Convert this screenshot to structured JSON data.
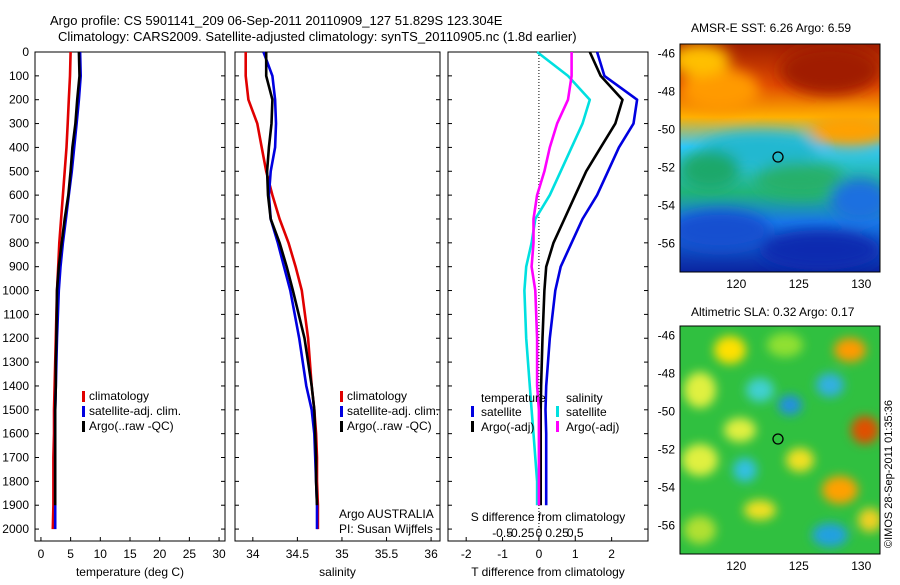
{
  "title_line1": "Argo profile: CS 5901141_209 06-Sep-2011 20110909_127 51.829S 123.304E",
  "title_line2": "Climatology: CARS2009. Satellite-adjusted climatology: synTS_20110905.nc (1.8d earlier)",
  "footer_mark": "©IMOS 28-Sep-2011 01:35:36",
  "colors": {
    "climatology": "#e00000",
    "satellite": "#0000e0",
    "argo": "#000000",
    "sal_sat": "#00e0e0",
    "sal_argo": "#ff00ff"
  },
  "chart_data": [
    {
      "type": "line",
      "xlabel": "temperature (deg C)",
      "ylim": [
        2050,
        0
      ],
      "xlim": [
        -1,
        31
      ],
      "xticks": [
        "0",
        "5",
        "10",
        "15",
        "20",
        "25",
        "30"
      ],
      "yticks": [
        "0",
        "100",
        "200",
        "300",
        "400",
        "500",
        "600",
        "700",
        "800",
        "900",
        "1000",
        "1100",
        "1200",
        "1300",
        "1400",
        "1500",
        "1600",
        "1700",
        "1800",
        "1900",
        "2000"
      ],
      "legend": [
        "climatology",
        "satellite-adj. clim.",
        "Argo(..raw -QC)"
      ],
      "series": [
        {
          "name": "climatology",
          "color": "climatology",
          "x": [
            5.0,
            4.9,
            4.7,
            4.5,
            4.3,
            4.0,
            3.7,
            3.4,
            3.1,
            2.9,
            2.7,
            2.5,
            2.4,
            2.3,
            2.2,
            2.2,
            2.1,
            2.1,
            2.1,
            2.0
          ],
          "y": [
            0,
            100,
            200,
            300,
            400,
            500,
            600,
            700,
            800,
            900,
            1000,
            1200,
            1300,
            1400,
            1500,
            1600,
            1700,
            1800,
            1900,
            2000
          ]
        },
        {
          "name": "satellite-adj. clim.",
          "color": "satellite",
          "x": [
            6.6,
            6.7,
            6.4,
            6.0,
            5.6,
            5.2,
            4.7,
            4.2,
            3.7,
            3.3,
            3.0,
            2.7,
            2.6,
            2.5,
            2.4,
            2.4,
            2.4,
            2.4,
            2.4,
            2.4
          ],
          "y": [
            0,
            100,
            200,
            300,
            400,
            500,
            600,
            700,
            800,
            900,
            1000,
            1200,
            1300,
            1400,
            1500,
            1600,
            1700,
            1800,
            1900,
            2000
          ]
        },
        {
          "name": "Argo(..raw -QC)",
          "color": "argo",
          "x": [
            6.4,
            6.5,
            6.1,
            5.8,
            5.3,
            5.0,
            4.6,
            4.0,
            3.5,
            3.0,
            2.7,
            2.6,
            2.5,
            2.5,
            2.4,
            2.4,
            2.4,
            2.4,
            2.4
          ],
          "y": [
            0,
            100,
            200,
            300,
            400,
            500,
            600,
            700,
            800,
            900,
            1000,
            1200,
            1300,
            1400,
            1500,
            1600,
            1700,
            1800,
            1900
          ]
        }
      ]
    },
    {
      "type": "line",
      "xlabel": "salinity",
      "ylim": [
        2050,
        0
      ],
      "xlim": [
        33.8,
        36.1
      ],
      "xticks": [
        "34",
        "34.5",
        "35",
        "35.5",
        "36"
      ],
      "legend": [
        "climatology",
        "satellite-adj. clim.",
        "Argo(..raw -QC)"
      ],
      "annotation": [
        "Argo AUSTRALIA",
        "PI: Susan Wijffels"
      ],
      "series": [
        {
          "name": "climatology",
          "color": "climatology",
          "x": [
            33.92,
            33.92,
            33.95,
            34.05,
            34.1,
            34.15,
            34.22,
            34.3,
            34.4,
            34.48,
            34.55,
            34.62,
            34.66,
            34.69,
            34.71,
            34.72,
            34.72,
            34.73,
            34.73
          ],
          "y": [
            0,
            100,
            200,
            300,
            400,
            500,
            600,
            700,
            800,
            900,
            1000,
            1200,
            1400,
            1500,
            1600,
            1700,
            1800,
            1900,
            2000
          ]
        },
        {
          "name": "satellite-adj. clim.",
          "color": "satellite",
          "x": [
            34.12,
            34.22,
            34.25,
            34.26,
            34.25,
            34.2,
            34.18,
            34.2,
            34.28,
            34.35,
            34.42,
            34.52,
            34.6,
            34.66,
            34.69,
            34.7,
            34.71,
            34.72,
            34.72
          ],
          "y": [
            0,
            100,
            200,
            300,
            400,
            500,
            600,
            700,
            800,
            900,
            1000,
            1200,
            1400,
            1500,
            1600,
            1700,
            1800,
            1900,
            2000
          ]
        },
        {
          "name": "Argo(..raw -QC)",
          "color": "argo",
          "x": [
            34.15,
            34.15,
            34.22,
            34.21,
            34.18,
            34.16,
            34.17,
            34.2,
            34.3,
            34.38,
            34.45,
            34.58,
            34.66,
            34.69,
            34.7,
            34.71,
            34.71,
            34.72
          ],
          "y": [
            0,
            100,
            200,
            300,
            400,
            500,
            600,
            700,
            800,
            900,
            1000,
            1200,
            1400,
            1500,
            1600,
            1700,
            1800,
            1900
          ]
        }
      ]
    },
    {
      "type": "line",
      "xlabel": "T difference from climatology",
      "top_label": "S difference from climatology",
      "ylim": [
        2050,
        0
      ],
      "xlim": [
        -2.5,
        3.0
      ],
      "xticks": [
        "-2",
        "-1",
        "0",
        "1",
        "2"
      ],
      "sticks": [
        "-0.5",
        "-0.25",
        "0",
        "0.25",
        "0.5"
      ],
      "legend_groups": [
        {
          "title": "temperature",
          "items": [
            "satellite",
            "Argo(-adj)"
          ]
        },
        {
          "title": "salinity",
          "items": [
            "satellite",
            "Argo(-adj)"
          ]
        }
      ],
      "series": [
        {
          "name": "satellite",
          "group": "temperature",
          "color": "satellite",
          "x": [
            1.6,
            1.8,
            2.7,
            2.6,
            2.2,
            1.9,
            1.6,
            1.2,
            0.9,
            0.6,
            0.45,
            0.3,
            0.25,
            0.2,
            0.18,
            0.2,
            0.2,
            0.2,
            0.2
          ],
          "y": [
            0,
            100,
            200,
            300,
            400,
            500,
            600,
            700,
            800,
            900,
            1000,
            1200,
            1300,
            1400,
            1500,
            1600,
            1700,
            1800,
            1900
          ]
        },
        {
          "name": "Argo(-adj)",
          "group": "temperature",
          "color": "argo",
          "x": [
            1.4,
            1.7,
            2.3,
            2.1,
            1.7,
            1.3,
            1.0,
            0.7,
            0.4,
            0.2,
            0.15,
            0.1,
            0.08,
            0.06,
            0.05,
            0.05,
            0.05,
            0.05,
            0.05
          ],
          "y": [
            0,
            100,
            200,
            300,
            400,
            500,
            600,
            700,
            800,
            900,
            1000,
            1200,
            1300,
            1400,
            1500,
            1600,
            1700,
            1800,
            1900
          ]
        },
        {
          "name": "satellite",
          "group": "salinity",
          "color": "sal_sat",
          "x": [
            -0.05,
            0.8,
            1.4,
            1.2,
            0.9,
            0.6,
            0.3,
            -0.1,
            -0.2,
            -0.35,
            -0.4,
            -0.35,
            -0.3,
            -0.25,
            -0.2,
            -0.15,
            -0.1,
            -0.05,
            -0.05
          ],
          "y": [
            0,
            100,
            200,
            300,
            400,
            500,
            600,
            700,
            800,
            900,
            1000,
            1200,
            1300,
            1400,
            1500,
            1600,
            1700,
            1800,
            1900
          ]
        },
        {
          "name": "Argo(-adj)",
          "group": "salinity",
          "color": "sal_argo",
          "x": [
            0.9,
            0.9,
            0.8,
            0.5,
            0.3,
            0.15,
            -0.05,
            -0.15,
            -0.15,
            -0.2,
            -0.1,
            -0.05,
            -0.05,
            -0.05,
            0,
            0,
            0,
            0,
            0
          ],
          "y": [
            0,
            100,
            200,
            300,
            400,
            500,
            600,
            700,
            800,
            900,
            1000,
            1200,
            1300,
            1400,
            1500,
            1600,
            1700,
            1800,
            1900
          ]
        }
      ]
    },
    {
      "type": "heatmap",
      "title": "AMSR-E SST: 6.26 Argo: 6.59",
      "xticks": [
        "120",
        "125",
        "130"
      ],
      "yticks": [
        "-46",
        "-48",
        "-50",
        "-52",
        "-54",
        "-56"
      ],
      "xlim": [
        115.5,
        131.5
      ],
      "ylim": [
        -57.5,
        -45.5
      ],
      "marker": {
        "lon": 123.304,
        "lat": -51.829
      }
    },
    {
      "type": "heatmap",
      "title": "Altimetric SLA: 0.32 Argo: 0.17",
      "xticks": [
        "120",
        "125",
        "130"
      ],
      "yticks": [
        "-46",
        "-48",
        "-50",
        "-52",
        "-54",
        "-56"
      ],
      "xlim": [
        115.5,
        131.5
      ],
      "ylim": [
        -57.5,
        -45.5
      ],
      "marker": {
        "lon": 123.304,
        "lat": -51.829
      }
    }
  ]
}
